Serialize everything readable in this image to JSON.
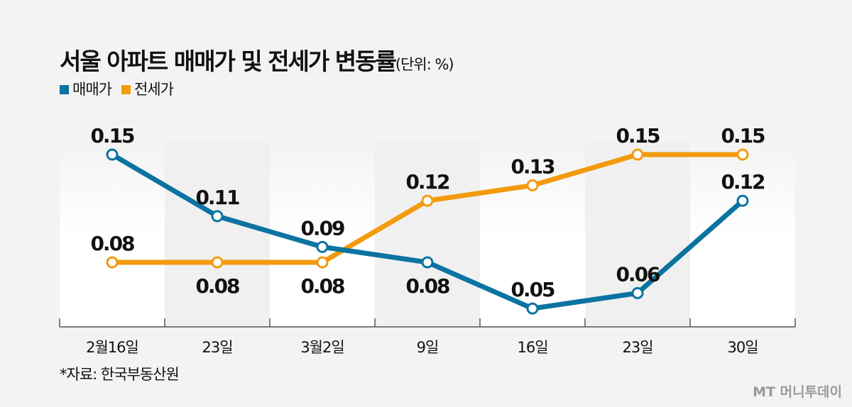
{
  "title": "서울 아파트 매매가 및 전세가 변동률",
  "unit": "(단위: %)",
  "source": "*자료: 한국부동산원",
  "watermark": "MT 머니투데이",
  "chart_data": {
    "type": "line",
    "title": "서울 아파트 매매가 및 전세가 변동률",
    "ylabel": "%",
    "categories": [
      "2월16일",
      "23일",
      "3월2일",
      "9일",
      "16일",
      "23일",
      "30일"
    ],
    "series": [
      {
        "name": "매매가",
        "color": "#0b73a1",
        "values": [
          0.15,
          0.11,
          0.09,
          0.08,
          0.05,
          0.06,
          0.12
        ],
        "label_pos": [
          "above",
          "above",
          "above",
          "below",
          "above",
          "above",
          "above"
        ]
      },
      {
        "name": "전세가",
        "color": "#f39a0d",
        "values": [
          0.08,
          0.08,
          0.08,
          0.12,
          0.13,
          0.15,
          0.15
        ],
        "label_pos": [
          "above",
          "below",
          "below",
          "above",
          "above",
          "above",
          "above"
        ]
      }
    ],
    "ylim": [
      0.05,
      0.15
    ],
    "legend": "top-left",
    "grid": false
  }
}
